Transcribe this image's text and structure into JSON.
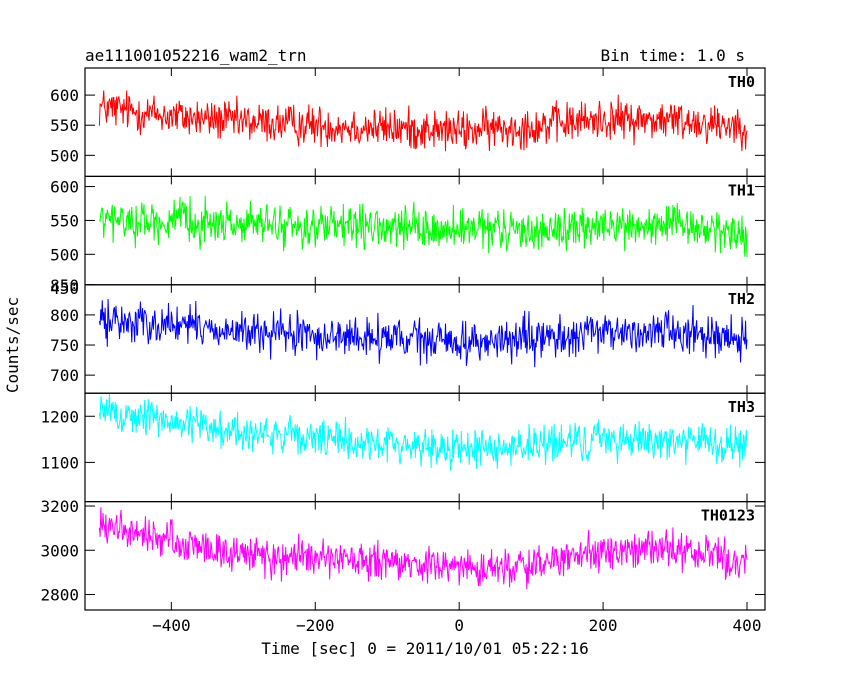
{
  "header": {
    "title": "ae111001052216_wam2_trn",
    "bin_time": "Bin time: 1.0 s"
  },
  "xlabel": "Time [sec] 0 = 2011/10/01 05:22:16",
  "ylabel": "Counts/sec",
  "chart_data": [
    {
      "type": "line",
      "panel_label": "TH0",
      "color": "#ff0000",
      "x_range": [
        -500,
        400
      ],
      "xlim": [
        -520,
        425
      ],
      "ylim": [
        465,
        645
      ],
      "yticks": [
        500,
        550,
        600
      ],
      "ytick_labels": [
        "500",
        "550",
        "600"
      ],
      "trend": {
        "x": [
          -500,
          -400,
          -300,
          -200,
          -100,
          0,
          100,
          200,
          300,
          400
        ],
        "y": [
          580,
          565,
          555,
          550,
          545,
          540,
          548,
          560,
          558,
          550
        ]
      },
      "noise_amplitude": 28
    },
    {
      "type": "line",
      "panel_label": "TH1",
      "color": "#00ff00",
      "x_range": [
        -500,
        400
      ],
      "xlim": [
        -520,
        425
      ],
      "ylim": [
        455,
        615
      ],
      "yticks": [
        450,
        500,
        550,
        600
      ],
      "ytick_labels": [
        "450",
        "500",
        "550",
        "600"
      ],
      "trend": {
        "x": [
          -500,
          -400,
          -300,
          -200,
          -100,
          0,
          100,
          200,
          300,
          400
        ],
        "y": [
          550,
          548,
          545,
          540,
          538,
          535,
          535,
          540,
          542,
          530
        ]
      },
      "noise_amplitude": 25
    },
    {
      "type": "line",
      "panel_label": "TH2",
      "color": "#0000ff",
      "x_range": [
        -500,
        400
      ],
      "xlim": [
        -520,
        425
      ],
      "ylim": [
        670,
        850
      ],
      "yticks": [
        700,
        750,
        800,
        850
      ],
      "ytick_labels": [
        "700",
        "750",
        "800",
        "850"
      ],
      "trend": {
        "x": [
          -500,
          -400,
          -300,
          -200,
          -100,
          0,
          100,
          200,
          300,
          400
        ],
        "y": [
          790,
          785,
          770,
          765,
          760,
          755,
          758,
          770,
          775,
          760
        ]
      },
      "noise_amplitude": 28
    },
    {
      "type": "line",
      "panel_label": "TH3",
      "color": "#00ffff",
      "x_range": [
        -500,
        400
      ],
      "xlim": [
        -520,
        425
      ],
      "ylim": [
        1015,
        1250
      ],
      "yticks": [
        1100,
        1200
      ],
      "ytick_labels": [
        "1100",
        "1200"
      ],
      "trend": {
        "x": [
          -500,
          -400,
          -300,
          -200,
          -100,
          0,
          100,
          200,
          300,
          400
        ],
        "y": [
          1210,
          1190,
          1165,
          1150,
          1140,
          1130,
          1135,
          1150,
          1150,
          1130
        ]
      },
      "noise_amplitude": 35
    },
    {
      "type": "line",
      "panel_label": "TH0123",
      "color": "#ff00ff",
      "x_range": [
        -500,
        400
      ],
      "xlim": [
        -520,
        425
      ],
      "ylim": [
        2730,
        3220
      ],
      "yticks": [
        2800,
        3000,
        3200
      ],
      "ytick_labels": [
        "2800",
        "3000",
        "3200"
      ],
      "trend": {
        "x": [
          -500,
          -400,
          -300,
          -200,
          -100,
          0,
          100,
          200,
          300,
          400
        ],
        "y": [
          3110,
          3040,
          2980,
          2960,
          2940,
          2920,
          2930,
          2990,
          3010,
          2940
        ]
      },
      "noise_amplitude": 70
    }
  ],
  "xaxis": {
    "ticks": [
      -400,
      -200,
      0,
      200,
      400
    ],
    "tick_labels": [
      "−400",
      "−200",
      "0",
      "200",
      "400"
    ]
  }
}
